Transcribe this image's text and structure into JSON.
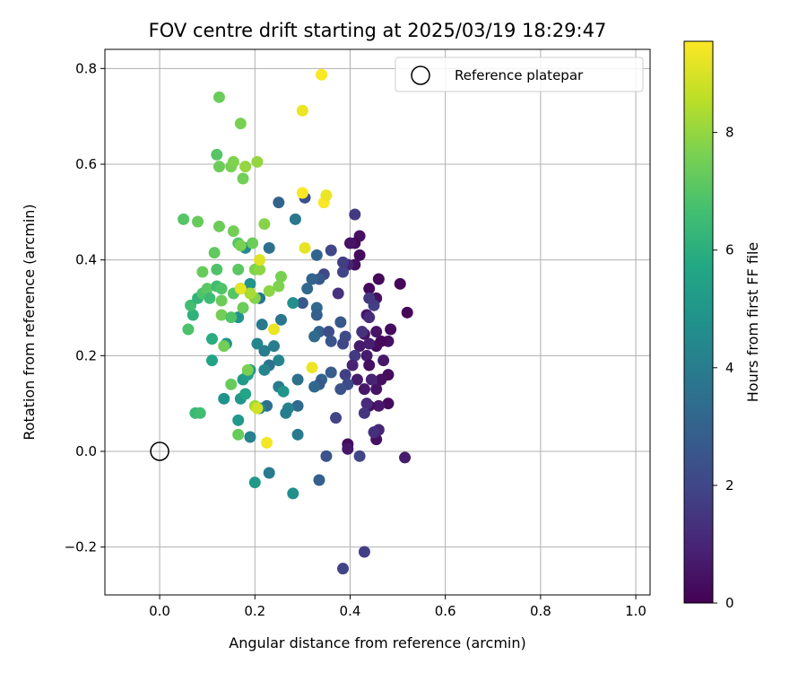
{
  "chart_data": {
    "type": "scatter",
    "title": "FOV centre drift starting at 2025/03/19 18:29:47",
    "xlabel": "Angular distance from reference (arcmin)",
    "ylabel": "Rotation from reference (arcmin)",
    "colorbar_label": "Hours from first FF file",
    "colormap": "viridis",
    "xlim": [
      -0.115,
      1.03
    ],
    "ylim": [
      -0.3,
      0.84
    ],
    "clim": [
      0,
      9.55
    ],
    "x_ticks": [
      0.0,
      0.2,
      0.4,
      0.6,
      0.8,
      1.0
    ],
    "x_tick_labels": [
      "0.0",
      "0.2",
      "0.4",
      "0.6",
      "0.8",
      "1.0"
    ],
    "y_ticks": [
      -0.2,
      0.0,
      0.2,
      0.4,
      0.6,
      0.8
    ],
    "y_tick_labels": [
      "−0.2",
      "0.0",
      "0.2",
      "0.4",
      "0.6",
      "0.8"
    ],
    "c_ticks": [
      0,
      2,
      4,
      6,
      8
    ],
    "c_tick_labels": [
      "0",
      "2",
      "4",
      "6",
      "8"
    ],
    "grid": true,
    "legend": {
      "placement": "top-right",
      "entries": [
        "Reference platepar"
      ]
    },
    "reference_point": {
      "x": 0.0,
      "y": 0.0
    },
    "points": [
      {
        "x": 0.505,
        "y": 0.35,
        "t": 0.2
      },
      {
        "x": 0.52,
        "y": 0.29,
        "t": 0.1
      },
      {
        "x": 0.515,
        "y": -0.013,
        "t": 0.7
      },
      {
        "x": 0.46,
        "y": 0.36,
        "t": 0.2
      },
      {
        "x": 0.455,
        "y": 0.32,
        "t": 0.4
      },
      {
        "x": 0.44,
        "y": 0.34,
        "t": 0.2
      },
      {
        "x": 0.485,
        "y": 0.255,
        "t": 0.3
      },
      {
        "x": 0.48,
        "y": 0.23,
        "t": 0.4
      },
      {
        "x": 0.465,
        "y": 0.23,
        "t": 0.2
      },
      {
        "x": 0.455,
        "y": 0.25,
        "t": 0.5
      },
      {
        "x": 0.455,
        "y": 0.22,
        "t": 0.3
      },
      {
        "x": 0.47,
        "y": 0.19,
        "t": 0.6
      },
      {
        "x": 0.48,
        "y": 0.16,
        "t": 0.3
      },
      {
        "x": 0.465,
        "y": 0.15,
        "t": 0.4
      },
      {
        "x": 0.455,
        "y": 0.13,
        "t": 0.5
      },
      {
        "x": 0.48,
        "y": 0.1,
        "t": 0.3
      },
      {
        "x": 0.46,
        "y": 0.095,
        "t": 0.6
      },
      {
        "x": 0.44,
        "y": 0.095,
        "t": 0.4
      },
      {
        "x": 0.46,
        "y": 0.045,
        "t": 1.0
      },
      {
        "x": 0.455,
        "y": 0.025,
        "t": 0.4
      },
      {
        "x": 0.45,
        "y": 0.04,
        "t": 1.3
      },
      {
        "x": 0.435,
        "y": 0.285,
        "t": 0.6
      },
      {
        "x": 0.43,
        "y": 0.245,
        "t": 0.5
      },
      {
        "x": 0.44,
        "y": 0.225,
        "t": 0.8
      },
      {
        "x": 0.435,
        "y": 0.2,
        "t": 0.7
      },
      {
        "x": 0.44,
        "y": 0.18,
        "t": 0.4
      },
      {
        "x": 0.445,
        "y": 0.15,
        "t": 0.9
      },
      {
        "x": 0.43,
        "y": 0.13,
        "t": 0.6
      },
      {
        "x": 0.435,
        "y": 0.1,
        "t": 1.2
      },
      {
        "x": 0.43,
        "y": 0.08,
        "t": 1.5
      },
      {
        "x": 0.43,
        "y": -0.21,
        "t": 1.8
      },
      {
        "x": 0.42,
        "y": 0.45,
        "t": 0.4
      },
      {
        "x": 0.42,
        "y": 0.41,
        "t": 0.3
      },
      {
        "x": 0.41,
        "y": 0.435,
        "t": 0.3
      },
      {
        "x": 0.4,
        "y": 0.435,
        "t": 0.5
      },
      {
        "x": 0.41,
        "y": 0.39,
        "t": 0.4
      },
      {
        "x": 0.41,
        "y": 0.495,
        "t": 1.6
      },
      {
        "x": 0.395,
        "y": 0.39,
        "t": 0.9
      },
      {
        "x": 0.45,
        "y": 0.305,
        "t": 1.8
      },
      {
        "x": 0.44,
        "y": 0.32,
        "t": 1.6
      },
      {
        "x": 0.44,
        "y": 0.28,
        "t": 1.2
      },
      {
        "x": 0.425,
        "y": 0.25,
        "t": 1.4
      },
      {
        "x": 0.42,
        "y": 0.22,
        "t": 0.7
      },
      {
        "x": 0.41,
        "y": 0.2,
        "t": 1.6
      },
      {
        "x": 0.405,
        "y": 0.18,
        "t": 0.9
      },
      {
        "x": 0.415,
        "y": 0.15,
        "t": 0.7
      },
      {
        "x": 0.395,
        "y": 0.015,
        "t": 0.3
      },
      {
        "x": 0.395,
        "y": 0.005,
        "t": 0.6
      },
      {
        "x": 0.42,
        "y": -0.01,
        "t": 2.0
      },
      {
        "x": 0.385,
        "y": 0.375,
        "t": 1.9
      },
      {
        "x": 0.385,
        "y": 0.395,
        "t": 1.7
      },
      {
        "x": 0.375,
        "y": 0.33,
        "t": 1.4
      },
      {
        "x": 0.38,
        "y": 0.27,
        "t": 2.6
      },
      {
        "x": 0.39,
        "y": 0.24,
        "t": 2.2
      },
      {
        "x": 0.385,
        "y": 0.225,
        "t": 2.0
      },
      {
        "x": 0.39,
        "y": 0.16,
        "t": 1.8
      },
      {
        "x": 0.395,
        "y": 0.14,
        "t": 2.2
      },
      {
        "x": 0.38,
        "y": 0.13,
        "t": 2.4
      },
      {
        "x": 0.37,
        "y": 0.07,
        "t": 1.9
      },
      {
        "x": 0.385,
        "y": -0.245,
        "t": 1.9
      },
      {
        "x": 0.36,
        "y": 0.42,
        "t": 2.0
      },
      {
        "x": 0.345,
        "y": 0.37,
        "t": 2.1
      },
      {
        "x": 0.335,
        "y": 0.36,
        "t": 2.7
      },
      {
        "x": 0.33,
        "y": 0.41,
        "t": 3.1
      },
      {
        "x": 0.33,
        "y": 0.3,
        "t": 3.2
      },
      {
        "x": 0.33,
        "y": 0.285,
        "t": 2.9
      },
      {
        "x": 0.335,
        "y": 0.25,
        "t": 3.0
      },
      {
        "x": 0.325,
        "y": 0.24,
        "t": 3.3
      },
      {
        "x": 0.355,
        "y": 0.25,
        "t": 2.3
      },
      {
        "x": 0.36,
        "y": 0.23,
        "t": 2.5
      },
      {
        "x": 0.36,
        "y": 0.165,
        "t": 2.8
      },
      {
        "x": 0.34,
        "y": 0.15,
        "t": 3.0
      },
      {
        "x": 0.335,
        "y": 0.14,
        "t": 2.6
      },
      {
        "x": 0.325,
        "y": 0.135,
        "t": 3.2
      },
      {
        "x": 0.35,
        "y": -0.01,
        "t": 2.4
      },
      {
        "x": 0.335,
        "y": -0.06,
        "t": 2.9
      },
      {
        "x": 0.305,
        "y": 0.53,
        "t": 2.3
      },
      {
        "x": 0.31,
        "y": 0.34,
        "t": 3.2
      },
      {
        "x": 0.32,
        "y": 0.36,
        "t": 3.0
      },
      {
        "x": 0.3,
        "y": 0.31,
        "t": 2.6
      },
      {
        "x": 0.29,
        "y": 0.15,
        "t": 3.5
      },
      {
        "x": 0.29,
        "y": 0.095,
        "t": 3.3
      },
      {
        "x": 0.285,
        "y": 0.485,
        "t": 3.8
      },
      {
        "x": 0.25,
        "y": 0.52,
        "t": 3.0
      },
      {
        "x": 0.28,
        "y": 0.31,
        "t": 4.7
      },
      {
        "x": 0.255,
        "y": 0.275,
        "t": 3.7
      },
      {
        "x": 0.25,
        "y": 0.19,
        "t": 4.3
      },
      {
        "x": 0.24,
        "y": 0.22,
        "t": 4.0
      },
      {
        "x": 0.23,
        "y": 0.18,
        "t": 3.6
      },
      {
        "x": 0.25,
        "y": 0.135,
        "t": 3.9
      },
      {
        "x": 0.26,
        "y": 0.125,
        "t": 5.0
      },
      {
        "x": 0.27,
        "y": 0.09,
        "t": 4.2
      },
      {
        "x": 0.265,
        "y": 0.08,
        "t": 4.1
      },
      {
        "x": 0.29,
        "y": 0.035,
        "t": 3.9
      },
      {
        "x": 0.23,
        "y": -0.045,
        "t": 3.9
      },
      {
        "x": 0.28,
        "y": -0.088,
        "t": 4.7
      },
      {
        "x": 0.23,
        "y": 0.425,
        "t": 3.5
      },
      {
        "x": 0.21,
        "y": 0.32,
        "t": 3.7
      },
      {
        "x": 0.215,
        "y": 0.265,
        "t": 3.9
      },
      {
        "x": 0.205,
        "y": 0.225,
        "t": 4.3
      },
      {
        "x": 0.22,
        "y": 0.21,
        "t": 4.0
      },
      {
        "x": 0.22,
        "y": 0.17,
        "t": 4.4
      },
      {
        "x": 0.225,
        "y": 0.095,
        "t": 3.5
      },
      {
        "x": 0.21,
        "y": 0.09,
        "t": 4.4
      },
      {
        "x": 0.19,
        "y": 0.03,
        "t": 4.2
      },
      {
        "x": 0.2,
        "y": -0.065,
        "t": 5.1
      },
      {
        "x": 0.18,
        "y": 0.425,
        "t": 4.5
      },
      {
        "x": 0.19,
        "y": 0.35,
        "t": 4.9
      },
      {
        "x": 0.17,
        "y": 0.34,
        "t": 4.3
      },
      {
        "x": 0.165,
        "y": 0.28,
        "t": 4.8
      },
      {
        "x": 0.175,
        "y": 0.15,
        "t": 5.2
      },
      {
        "x": 0.17,
        "y": 0.11,
        "t": 5.0
      },
      {
        "x": 0.165,
        "y": 0.065,
        "t": 5.1
      },
      {
        "x": 0.18,
        "y": 0.12,
        "t": 5.6
      },
      {
        "x": 0.19,
        "y": 0.17,
        "t": 4.9
      },
      {
        "x": 0.185,
        "y": 0.16,
        "t": 5.3
      },
      {
        "x": 0.14,
        "y": 0.225,
        "t": 5.0
      },
      {
        "x": 0.135,
        "y": 0.11,
        "t": 4.8
      },
      {
        "x": 0.11,
        "y": 0.19,
        "t": 5.5
      },
      {
        "x": 0.11,
        "y": 0.235,
        "t": 5.9
      },
      {
        "x": 0.075,
        "y": 0.08,
        "t": 6.4
      },
      {
        "x": 0.085,
        "y": 0.08,
        "t": 6.6
      },
      {
        "x": 0.06,
        "y": 0.255,
        "t": 6.8
      },
      {
        "x": 0.07,
        "y": 0.285,
        "t": 6.1
      },
      {
        "x": 0.065,
        "y": 0.305,
        "t": 6.6
      },
      {
        "x": 0.08,
        "y": 0.32,
        "t": 6.2
      },
      {
        "x": 0.09,
        "y": 0.33,
        "t": 6.9
      },
      {
        "x": 0.1,
        "y": 0.34,
        "t": 7.1
      },
      {
        "x": 0.105,
        "y": 0.32,
        "t": 6.5
      },
      {
        "x": 0.12,
        "y": 0.345,
        "t": 6.6
      },
      {
        "x": 0.13,
        "y": 0.34,
        "t": 6.9
      },
      {
        "x": 0.13,
        "y": 0.315,
        "t": 7.4
      },
      {
        "x": 0.13,
        "y": 0.285,
        "t": 7.5
      },
      {
        "x": 0.15,
        "y": 0.28,
        "t": 6.9
      },
      {
        "x": 0.155,
        "y": 0.33,
        "t": 7.0
      },
      {
        "x": 0.165,
        "y": 0.38,
        "t": 7.1
      },
      {
        "x": 0.12,
        "y": 0.38,
        "t": 6.9
      },
      {
        "x": 0.09,
        "y": 0.375,
        "t": 7.3
      },
      {
        "x": 0.115,
        "y": 0.415,
        "t": 7.2
      },
      {
        "x": 0.15,
        "y": 0.14,
        "t": 7.3
      },
      {
        "x": 0.135,
        "y": 0.22,
        "t": 7.5
      },
      {
        "x": 0.165,
        "y": 0.035,
        "t": 7.3
      },
      {
        "x": 0.05,
        "y": 0.485,
        "t": 7.0
      },
      {
        "x": 0.08,
        "y": 0.48,
        "t": 7.3
      },
      {
        "x": 0.125,
        "y": 0.47,
        "t": 7.4
      },
      {
        "x": 0.155,
        "y": 0.46,
        "t": 7.5
      },
      {
        "x": 0.165,
        "y": 0.435,
        "t": 7.0
      },
      {
        "x": 0.17,
        "y": 0.43,
        "t": 7.6
      },
      {
        "x": 0.195,
        "y": 0.435,
        "t": 7.4
      },
      {
        "x": 0.2,
        "y": 0.38,
        "t": 7.7
      },
      {
        "x": 0.21,
        "y": 0.38,
        "t": 7.9
      },
      {
        "x": 0.2,
        "y": 0.32,
        "t": 7.8
      },
      {
        "x": 0.19,
        "y": 0.33,
        "t": 8.3
      },
      {
        "x": 0.22,
        "y": 0.475,
        "t": 7.8
      },
      {
        "x": 0.23,
        "y": 0.335,
        "t": 7.9
      },
      {
        "x": 0.25,
        "y": 0.345,
        "t": 7.7
      },
      {
        "x": 0.255,
        "y": 0.365,
        "t": 7.6
      },
      {
        "x": 0.175,
        "y": 0.3,
        "t": 7.4
      },
      {
        "x": 0.12,
        "y": 0.62,
        "t": 7.0
      },
      {
        "x": 0.125,
        "y": 0.595,
        "t": 7.4
      },
      {
        "x": 0.15,
        "y": 0.595,
        "t": 7.6
      },
      {
        "x": 0.155,
        "y": 0.605,
        "t": 7.7
      },
      {
        "x": 0.18,
        "y": 0.595,
        "t": 8.0
      },
      {
        "x": 0.205,
        "y": 0.605,
        "t": 8.0
      },
      {
        "x": 0.175,
        "y": 0.57,
        "t": 7.5
      },
      {
        "x": 0.17,
        "y": 0.685,
        "t": 7.6
      },
      {
        "x": 0.125,
        "y": 0.74,
        "t": 7.4
      },
      {
        "x": 0.185,
        "y": 0.17,
        "t": 7.6
      },
      {
        "x": 0.2,
        "y": 0.095,
        "t": 8.2
      },
      {
        "x": 0.205,
        "y": 0.09,
        "t": 8.9
      },
      {
        "x": 0.21,
        "y": 0.4,
        "t": 9.1
      },
      {
        "x": 0.17,
        "y": 0.34,
        "t": 9.2
      },
      {
        "x": 0.24,
        "y": 0.255,
        "t": 9.3
      },
      {
        "x": 0.225,
        "y": 0.018,
        "t": 9.4
      },
      {
        "x": 0.32,
        "y": 0.175,
        "t": 9.3
      },
      {
        "x": 0.3,
        "y": 0.54,
        "t": 9.5
      },
      {
        "x": 0.305,
        "y": 0.425,
        "t": 9.2
      },
      {
        "x": 0.345,
        "y": 0.52,
        "t": 9.5
      },
      {
        "x": 0.35,
        "y": 0.535,
        "t": 9.3
      },
      {
        "x": 0.3,
        "y": 0.712,
        "t": 9.3
      },
      {
        "x": 0.34,
        "y": 0.787,
        "t": 9.5
      }
    ]
  }
}
